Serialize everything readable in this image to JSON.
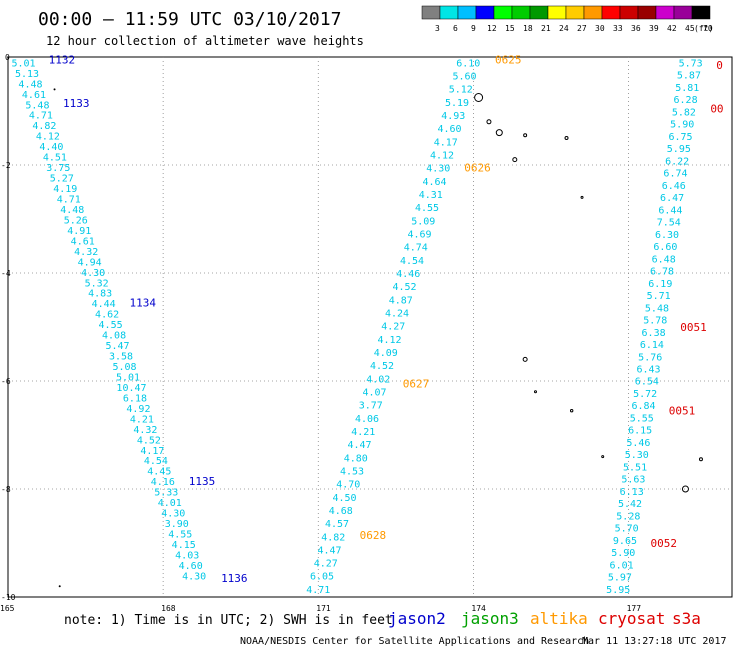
{
  "header": {
    "title": "00:00 — 11:59 UTC 03/10/2017",
    "subtitle": "12 hour collection of altimeter wave heights"
  },
  "colorbar": {
    "ticks": [
      "3",
      "6",
      "9",
      "12",
      "15",
      "18",
      "21",
      "24",
      "27",
      "30",
      "33",
      "36",
      "39",
      "42",
      "45",
      "70"
    ],
    "unit": "(ft)",
    "colors": [
      "#808080",
      "#00e5e5",
      "#00bfff",
      "#0000ff",
      "#00ff00",
      "#00cc00",
      "#009900",
      "#ffff00",
      "#ffcc00",
      "#ff9900",
      "#ff0000",
      "#cc0000",
      "#990000",
      "#cc00cc",
      "#990099",
      "#000000"
    ]
  },
  "footer": {
    "note": "note: 1) Time is in UTC; 2) SWH is in feet",
    "credit": "NOAA/NESDIS Center for Satellite Applications and Research",
    "timestamp": "Mar 11 13:27:18 UTC 2017",
    "legend": [
      {
        "label": "jason2",
        "color": "#0000cc"
      },
      {
        "label": "jason3",
        "color": "#00a000"
      },
      {
        "label": "altika",
        "color": "#ff9900"
      },
      {
        "label": "cryosat",
        "color": "#dd0000"
      },
      {
        "label": "s3a",
        "color": "#dd0000"
      }
    ]
  },
  "chart_data": {
    "type": "scatter",
    "title": "12 hour collection of altimeter wave heights",
    "xlabel": "",
    "ylabel": "",
    "xlim": [
      165,
      179
    ],
    "ylim": [
      -10,
      0
    ],
    "x_ticks": [
      165,
      168,
      171,
      174,
      177
    ],
    "y_ticks": [
      0,
      -2,
      -4,
      -6,
      -8,
      -10
    ],
    "grid": true,
    "swh_unit": "ft",
    "tracks": [
      {
        "satellite": "jason2",
        "color": "#00c8e6",
        "x_start": 165.3,
        "y_start": -0.1,
        "x_end": 168.6,
        "y_end": -9.6,
        "values": [
          "5.01",
          "5.13",
          "4.48",
          "4.61",
          "5.48",
          "4.71",
          "4.82",
          "4.12",
          "4.40",
          "4.51",
          "3.75",
          "5.27",
          "4.19",
          "4.71",
          "4.48",
          "5.26",
          "4.91",
          "4.61",
          "4.32",
          "4.94",
          "4.30",
          "5.32",
          "4.83",
          "4.44",
          "4.62",
          "4.55",
          "4.08",
          "5.47",
          "3.58",
          "5.08",
          "5.01",
          "10.47",
          "6.18",
          "4.92",
          "4.21",
          "4.32",
          "4.52",
          "4.17",
          "4.54",
          "4.45",
          "4.16",
          "5.33",
          "4.01",
          "4.30",
          "3.90",
          "4.55",
          "4.15",
          "4.03",
          "4.60",
          "4.30"
        ],
        "pass_labels": [
          {
            "text": "1132",
            "y": -0.05
          },
          {
            "text": "1133",
            "y": -0.85
          },
          {
            "text": "1134",
            "y": -4.55
          },
          {
            "text": "1135",
            "y": -7.85
          },
          {
            "text": "1136",
            "y": -9.65
          }
        ]
      },
      {
        "satellite": "altika",
        "color": "#00c8e6",
        "x_start": 173.9,
        "y_start": -0.1,
        "x_end": 171.0,
        "y_end": -9.85,
        "values": [
          "6.10",
          "5.60",
          "5.12",
          "5.19",
          "4.93",
          "4.60",
          "4.17",
          "4.12",
          "4.30",
          "4.64",
          "4.31",
          "4.55",
          "5.09",
          "4.69",
          "4.74",
          "4.54",
          "4.46",
          "4.52",
          "4.87",
          "4.24",
          "4.27",
          "4.12",
          "4.09",
          "4.52",
          "4.02",
          "4.07",
          "3.77",
          "4.06",
          "4.21",
          "4.47",
          "4.80",
          "4.53",
          "4.70",
          "4.50",
          "4.68",
          "4.57",
          "4.82",
          "4.47",
          "4.27",
          "6.05",
          "4.71"
        ],
        "pass_labels": [
          {
            "text": "0625",
            "y": -0.05
          },
          {
            "text": "0626",
            "y": -2.05
          },
          {
            "text": "0627",
            "y": -6.05
          },
          {
            "text": "0628",
            "y": -8.85
          }
        ]
      },
      {
        "satellite": "cryosat",
        "color": "#00c8e6",
        "x_start": 178.2,
        "y_start": -0.1,
        "x_end": 176.8,
        "y_end": -9.85,
        "values": [
          "5.73",
          "5.87",
          "5.81",
          "6.28",
          "5.82",
          "5.90",
          "6.75",
          "5.95",
          "6.22",
          "6.74",
          "6.46",
          "6.47",
          "6.44",
          "7.54",
          "6.30",
          "6.60",
          "6.48",
          "6.78",
          "6.19",
          "5.71",
          "5.48",
          "5.78",
          "6.38",
          "6.14",
          "5.76",
          "6.43",
          "6.54",
          "5.72",
          "6.84",
          "5.55",
          "6.15",
          "5.46",
          "5.30",
          "5.51",
          "5.63",
          "6.13",
          "5.42",
          "5.28",
          "5.70",
          "9.65",
          "5.90",
          "6.01",
          "5.97",
          "5.95"
        ],
        "pass_labels": [
          {
            "text": "0",
            "y": -0.15
          },
          {
            "text": "00",
            "y": -0.95
          },
          {
            "text": "0051",
            "y": -5.0
          },
          {
            "text": "0051",
            "y": -6.55
          },
          {
            "text": "0052",
            "y": -9.0
          }
        ]
      }
    ]
  }
}
